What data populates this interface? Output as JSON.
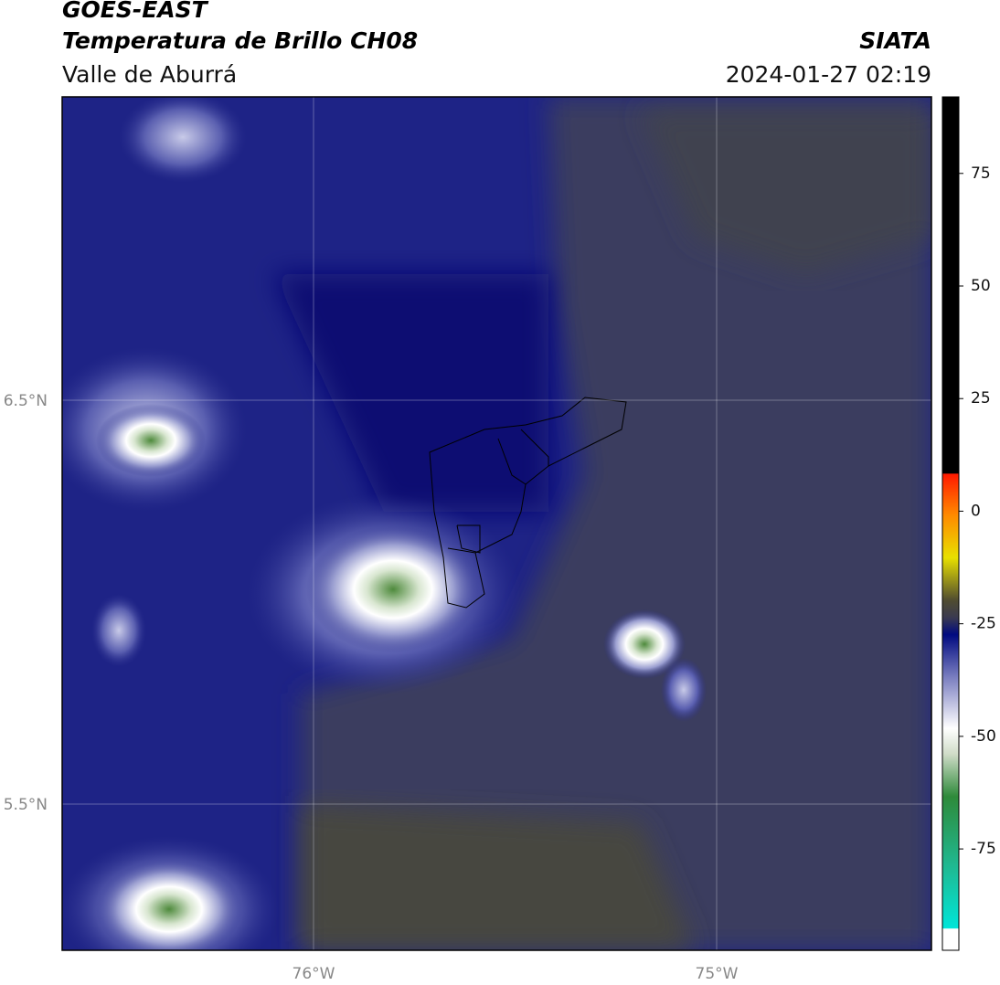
{
  "header": {
    "satellite": "GOES-EAST",
    "product": "Temperatura de Brillo CH08",
    "region": "Valle de Aburrá",
    "agency": "SIATA",
    "timestamp": "2024-01-27 02:19"
  },
  "map": {
    "lat_labels": [
      "6.5°N",
      "5.5°N"
    ],
    "lon_labels": [
      "76°W",
      "75°W"
    ]
  },
  "colorbar": {
    "lim": [
      -97.5,
      92
    ],
    "ticks": [
      75,
      50,
      25,
      0,
      -25,
      -50,
      -75
    ]
  }
}
